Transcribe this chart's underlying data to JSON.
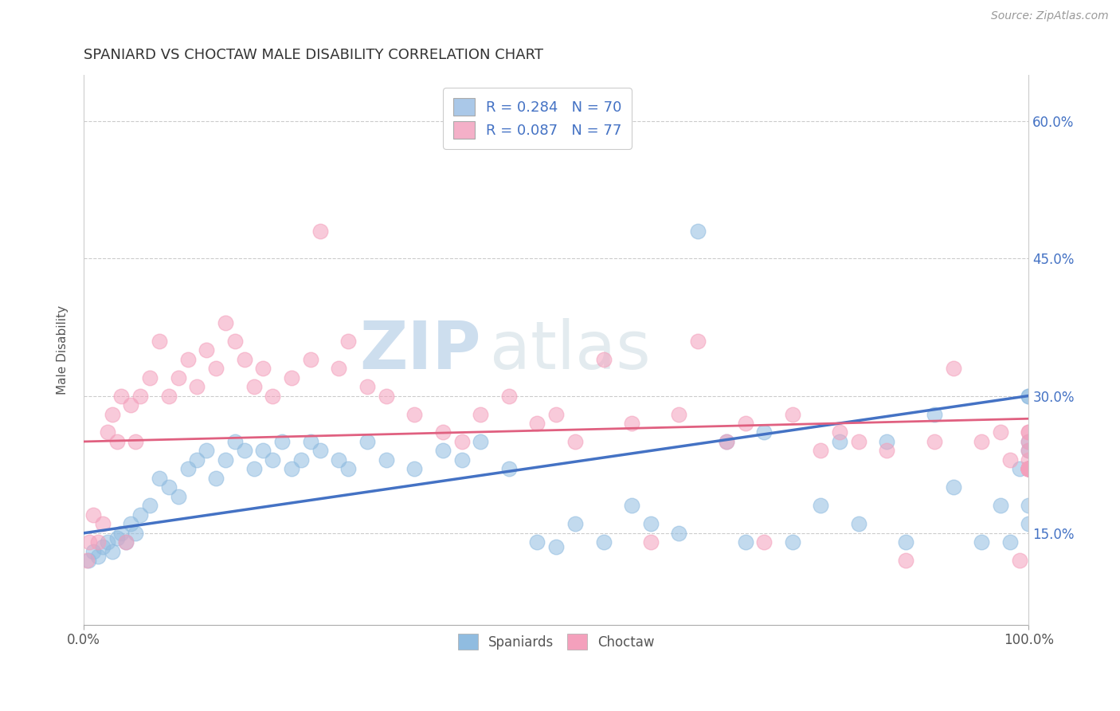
{
  "title": "SPANIARD VS CHOCTAW MALE DISABILITY CORRELATION CHART",
  "source_text": "Source: ZipAtlas.com",
  "ylabel": "Male Disability",
  "xlim": [
    0,
    100
  ],
  "ylim": [
    5,
    65
  ],
  "xtick_labels": [
    "0.0%",
    "100.0%"
  ],
  "xtick_vals": [
    0,
    100
  ],
  "ytick_vals": [
    15,
    30,
    45,
    60
  ],
  "ytick_labels": [
    "15.0%",
    "30.0%",
    "45.0%",
    "60.0%"
  ],
  "legend_entries": [
    {
      "label": "R = 0.284   N = 70",
      "color": "#aac8e8"
    },
    {
      "label": "R = 0.087   N = 77",
      "color": "#f4b0c8"
    }
  ],
  "legend_bottom": [
    "Spaniards",
    "Choctaw"
  ],
  "spaniards_color": "#90bce0",
  "choctaw_color": "#f4a0bc",
  "spaniards_line_color": "#4472c4",
  "choctaw_line_color": "#e06080",
  "R_spaniards": 0.284,
  "N_spaniards": 70,
  "R_choctaw": 0.087,
  "N_choctaw": 77,
  "watermark_zip": "ZIP",
  "watermark_atlas": "atlas",
  "background_color": "#ffffff",
  "grid_color": "#cccccc",
  "spaniards_x": [
    0.5,
    1.0,
    1.5,
    2.0,
    2.5,
    3.0,
    3.5,
    4.0,
    4.5,
    5.0,
    5.5,
    6.0,
    7.0,
    8.0,
    9.0,
    10.0,
    11.0,
    12.0,
    13.0,
    14.0,
    15.0,
    16.0,
    17.0,
    18.0,
    19.0,
    20.0,
    21.0,
    22.0,
    23.0,
    24.0,
    25.0,
    27.0,
    28.0,
    30.0,
    32.0,
    35.0,
    38.0,
    40.0,
    42.0,
    45.0,
    48.0,
    50.0,
    52.0,
    55.0,
    58.0,
    60.0,
    63.0,
    65.0,
    68.0,
    70.0,
    72.0,
    75.0,
    78.0,
    80.0,
    82.0,
    85.0,
    87.0,
    90.0,
    92.0,
    95.0,
    97.0,
    98.0,
    99.0,
    100.0,
    100.0,
    100.0,
    100.0,
    100.0,
    100.0,
    100.0
  ],
  "spaniards_y": [
    12.0,
    13.0,
    12.5,
    13.5,
    14.0,
    13.0,
    14.5,
    15.0,
    14.0,
    16.0,
    15.0,
    17.0,
    18.0,
    21.0,
    20.0,
    19.0,
    22.0,
    23.0,
    24.0,
    21.0,
    23.0,
    25.0,
    24.0,
    22.0,
    24.0,
    23.0,
    25.0,
    22.0,
    23.0,
    25.0,
    24.0,
    23.0,
    22.0,
    25.0,
    23.0,
    22.0,
    24.0,
    23.0,
    25.0,
    22.0,
    14.0,
    13.5,
    16.0,
    14.0,
    18.0,
    16.0,
    15.0,
    48.0,
    25.0,
    14.0,
    26.0,
    14.0,
    18.0,
    25.0,
    16.0,
    25.0,
    14.0,
    28.0,
    20.0,
    14.0,
    18.0,
    14.0,
    22.0,
    30.0,
    24.0,
    18.0,
    16.0,
    22.0,
    25.0,
    30.0
  ],
  "choctaw_x": [
    0.3,
    0.6,
    1.0,
    1.5,
    2.0,
    2.5,
    3.0,
    3.5,
    4.0,
    4.5,
    5.0,
    5.5,
    6.0,
    7.0,
    8.0,
    9.0,
    10.0,
    11.0,
    12.0,
    13.0,
    14.0,
    15.0,
    16.0,
    17.0,
    18.0,
    19.0,
    20.0,
    22.0,
    24.0,
    25.0,
    27.0,
    28.0,
    30.0,
    32.0,
    35.0,
    38.0,
    40.0,
    42.0,
    45.0,
    48.0,
    50.0,
    52.0,
    55.0,
    58.0,
    60.0,
    63.0,
    65.0,
    68.0,
    70.0,
    72.0,
    75.0,
    78.0,
    80.0,
    82.0,
    85.0,
    87.0,
    90.0,
    92.0,
    95.0,
    97.0,
    98.0,
    99.0,
    100.0,
    100.0,
    100.0,
    100.0,
    100.0,
    100.0,
    100.0,
    100.0,
    100.0,
    100.0,
    100.0,
    100.0,
    100.0,
    100.0,
    100.0
  ],
  "choctaw_y": [
    12.0,
    14.0,
    17.0,
    14.0,
    16.0,
    26.0,
    28.0,
    25.0,
    30.0,
    14.0,
    29.0,
    25.0,
    30.0,
    32.0,
    36.0,
    30.0,
    32.0,
    34.0,
    31.0,
    35.0,
    33.0,
    38.0,
    36.0,
    34.0,
    31.0,
    33.0,
    30.0,
    32.0,
    34.0,
    48.0,
    33.0,
    36.0,
    31.0,
    30.0,
    28.0,
    26.0,
    25.0,
    28.0,
    30.0,
    27.0,
    28.0,
    25.0,
    34.0,
    27.0,
    14.0,
    28.0,
    36.0,
    25.0,
    27.0,
    14.0,
    28.0,
    24.0,
    26.0,
    25.0,
    24.0,
    12.0,
    25.0,
    33.0,
    25.0,
    26.0,
    23.0,
    12.0,
    22.0,
    24.0,
    26.0,
    22.0,
    23.0,
    22.0,
    22.0,
    22.0,
    22.0,
    22.0,
    25.0,
    26.0,
    22.0,
    22.0,
    22.0
  ],
  "blue_line_x0": 0,
  "blue_line_y0": 15.0,
  "blue_line_x1": 100,
  "blue_line_y1": 30.0,
  "pink_line_x0": 0,
  "pink_line_y0": 25.0,
  "pink_line_x1": 100,
  "pink_line_y1": 27.5
}
